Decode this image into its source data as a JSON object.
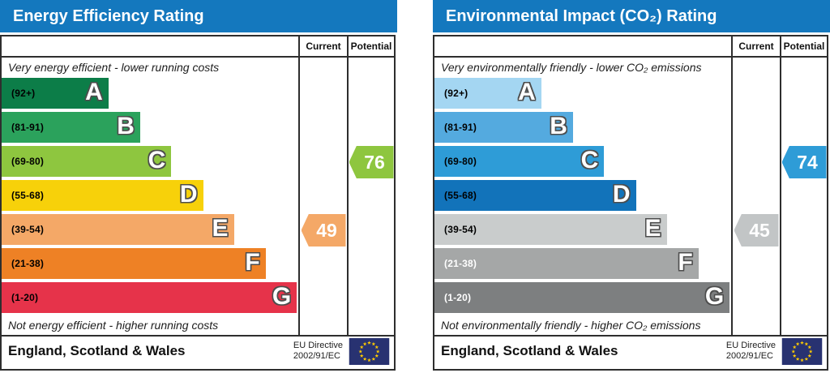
{
  "chart_data": [
    {
      "type": "bar",
      "title": "Energy Efficiency Rating",
      "top_caption": "Very energy efficient - lower running costs",
      "bottom_caption": "Not energy efficient - higher running costs",
      "categories": [
        "A (92+)",
        "B (81-91)",
        "C (69-80)",
        "D (55-68)",
        "E (39-54)",
        "F (21-38)",
        "G (1-20)"
      ],
      "current_value": 49,
      "current_band": "E",
      "potential_value": 76,
      "potential_band": "C",
      "region": "England, Scotland & Wales",
      "directive": "EU Directive 2002/91/EC"
    },
    {
      "type": "bar",
      "title": "Environmental Impact (CO₂) Rating",
      "top_caption": "Very environmentally friendly - lower CO₂ emissions",
      "bottom_caption": "Not environmentally friendly - higher CO₂ emissions",
      "categories": [
        "A (92+)",
        "B (81-91)",
        "C (69-80)",
        "D (55-68)",
        "E (39-54)",
        "F (21-38)",
        "G (1-20)"
      ],
      "current_value": 45,
      "current_band": "E",
      "potential_value": 74,
      "potential_band": "C",
      "region": "England, Scotland & Wales",
      "directive": "EU Directive 2002/91/EC"
    }
  ],
  "charts": [
    {
      "title": "Energy Efficiency Rating",
      "header_bg": "#1478be",
      "column_headers": {
        "current": "Current",
        "potential": "Potential"
      },
      "top_caption": "Very energy efficient - lower running costs",
      "bottom_caption": "Not energy efficient - higher running costs",
      "bands": [
        {
          "letter": "A",
          "range": "(92+)",
          "color": "#0c7d48",
          "width": "36%",
          "text": "#000000"
        },
        {
          "letter": "B",
          "range": "(81-91)",
          "color": "#2ba25c",
          "width": "46.7%",
          "text": "#000000"
        },
        {
          "letter": "C",
          "range": "(69-80)",
          "color": "#8ec63f",
          "width": "57.2%",
          "text": "#000000"
        },
        {
          "letter": "D",
          "range": "(55-68)",
          "color": "#f7d10a",
          "width": "67.9%",
          "text": "#000000"
        },
        {
          "letter": "E",
          "range": "(39-54)",
          "color": "#f4a867",
          "width": "78.3%",
          "text": "#000000"
        },
        {
          "letter": "F",
          "range": "(21-38)",
          "color": "#ee8125",
          "width": "89%",
          "text": "#000000"
        },
        {
          "letter": "G",
          "range": "(1-20)",
          "color": "#e6334a",
          "width": "99.5%",
          "text": "#000000"
        }
      ],
      "current": {
        "value": "49",
        "band": "E",
        "color": "#f4a867"
      },
      "potential": {
        "value": "76",
        "band": "C",
        "color": "#8ec63f"
      },
      "footer": {
        "region": "England, Scotland & Wales",
        "directive": [
          "EU Directive",
          "2002/91/EC"
        ],
        "flag_bg": "#283271",
        "flag_star": "#ffcc00"
      }
    },
    {
      "title": "Environmental Impact (CO₂) Rating",
      "header_bg": "#1478be",
      "column_headers": {
        "current": "Current",
        "potential": "Potential"
      },
      "top_caption": "Very environmentally friendly - lower CO₂ emissions",
      "bottom_caption": "Not environmentally friendly - higher CO₂ emissions",
      "bands": [
        {
          "letter": "A",
          "range": "(92+)",
          "color": "#a4d6f2",
          "width": "36%",
          "text": "#000000"
        },
        {
          "letter": "B",
          "range": "(81-91)",
          "color": "#54aadf",
          "width": "46.7%",
          "text": "#000000"
        },
        {
          "letter": "C",
          "range": "(69-80)",
          "color": "#2e9cd7",
          "width": "57.2%",
          "text": "#000000"
        },
        {
          "letter": "D",
          "range": "(55-68)",
          "color": "#1273ba",
          "width": "67.9%",
          "text": "#000000"
        },
        {
          "letter": "E",
          "range": "(39-54)",
          "color": "#c9cccc",
          "width": "78.3%",
          "text": "#000000"
        },
        {
          "letter": "F",
          "range": "(21-38)",
          "color": "#a5a7a7",
          "width": "89%",
          "text": "#ffffff"
        },
        {
          "letter": "G",
          "range": "(1-20)",
          "color": "#7d7f80",
          "width": "99.5%",
          "text": "#ffffff"
        }
      ],
      "current": {
        "value": "45",
        "band": "E",
        "color": "#c2c5c6"
      },
      "potential": {
        "value": "74",
        "band": "C",
        "color": "#2e9cd7"
      },
      "footer": {
        "region": "England, Scotland & Wales",
        "directive": [
          "EU Directive",
          "2002/91/EC"
        ],
        "flag_bg": "#283271",
        "flag_star": "#ffcc00"
      }
    }
  ]
}
